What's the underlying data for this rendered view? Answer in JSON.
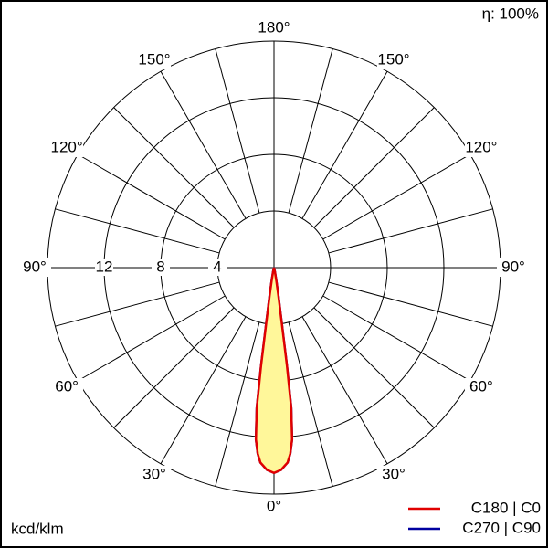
{
  "chart_data": {
    "type": "polar",
    "unit_label": "kcd/klm",
    "efficiency_label": "η: 100%",
    "rlim": [
      0,
      16
    ],
    "rticks": [
      4,
      8,
      12
    ],
    "spoke_step": 15,
    "thetaticks": [
      {
        "value": -180,
        "label": "180°"
      },
      {
        "value": -150,
        "label": "150°"
      },
      {
        "value": 150,
        "label": "150°"
      },
      {
        "value": -120,
        "label": "120°"
      },
      {
        "value": 120,
        "label": "120°"
      },
      {
        "value": -90,
        "label": "90°"
      },
      {
        "value": 90,
        "label": "90°"
      },
      {
        "value": -60,
        "label": "60°"
      },
      {
        "value": 60,
        "label": "60°"
      },
      {
        "value": -30,
        "label": "30°"
      },
      {
        "value": 30,
        "label": "30°"
      },
      {
        "value": 0,
        "label": "0°"
      }
    ],
    "theta": [
      -15,
      -12,
      -10,
      -9,
      -8,
      -7.5,
      -7,
      -6,
      -5,
      -4,
      -2,
      0,
      2,
      4,
      5,
      6,
      7,
      7.5,
      8,
      9,
      10,
      12,
      15
    ],
    "series": [
      {
        "name": "C270 | C90",
        "color": "#0000a0",
        "values": [
          0,
          0.3,
          1,
          2,
          4,
          7,
          10,
          12.2,
          13.2,
          13.8,
          14.3,
          14.5,
          14.3,
          13.8,
          13.2,
          12.2,
          10,
          7,
          4,
          2,
          1,
          0.3,
          0
        ]
      },
      {
        "name": "C180 | C0",
        "color": "#e00000",
        "fill": "#fff79a",
        "values": [
          0,
          0.3,
          1,
          2,
          4,
          7,
          10,
          12.2,
          13.2,
          13.8,
          14.3,
          14.5,
          14.3,
          13.8,
          13.2,
          12.2,
          10,
          7,
          4,
          2,
          1,
          0.3,
          0
        ]
      }
    ]
  }
}
